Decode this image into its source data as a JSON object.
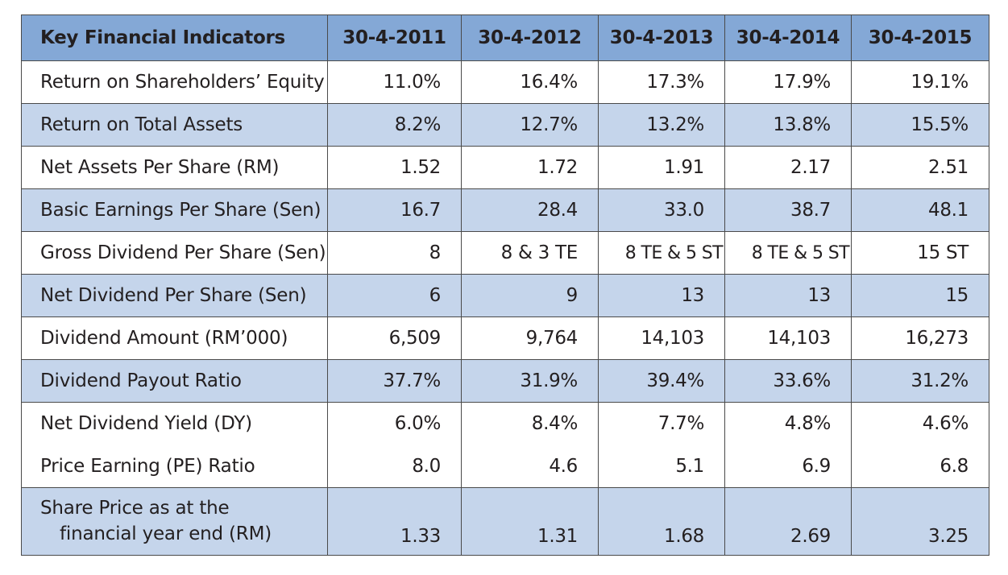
{
  "table": {
    "headers": [
      "Key Financial Indicators",
      "30-4-2011",
      "30-4-2012",
      "30-4-2013",
      "30-4-2014",
      "30-4-2015"
    ],
    "rows": [
      {
        "label": "Return on Shareholders’ Equity",
        "values": [
          "11.0%",
          "16.4%",
          "17.3%",
          "17.9%",
          "19.1%"
        ]
      },
      {
        "label": "Return on Total Assets",
        "values": [
          "8.2%",
          "12.7%",
          "13.2%",
          "13.8%",
          "15.5%"
        ]
      },
      {
        "label": "Net Assets Per Share (RM)",
        "values": [
          "1.52",
          "1.72",
          "1.91",
          "2.17",
          "2.51"
        ]
      },
      {
        "label": "Basic Earnings Per Share (Sen)",
        "values": [
          "16.7",
          "28.4",
          "33.0",
          "38.7",
          "48.1"
        ]
      },
      {
        "label": "Gross Dividend Per Share (Sen)",
        "values": [
          "8",
          "8 & 3 TE",
          "8 TE & 5 ST",
          "8 TE & 5 ST",
          "15 ST"
        ]
      },
      {
        "label": "Net Dividend Per Share (Sen)",
        "values": [
          "6",
          "9",
          "13",
          "13",
          "15"
        ]
      },
      {
        "label": "Dividend Amount (RM’000)",
        "values": [
          "6,509",
          "9,764",
          "14,103",
          "14,103",
          "16,273"
        ]
      },
      {
        "label": "Dividend Payout Ratio",
        "values": [
          "37.7%",
          "31.9%",
          "39.4%",
          "33.6%",
          "31.2%"
        ]
      },
      {
        "label": "Net Dividend Yield (DY)",
        "values": [
          "6.0%",
          "8.4%",
          "7.7%",
          "4.8%",
          "4.6%"
        ]
      },
      {
        "label": "Price Earning (PE) Ratio",
        "values": [
          "8.0",
          "4.6",
          "5.1",
          "6.9",
          "6.8"
        ]
      },
      {
        "label_line1": "Share Price as at the",
        "label_line2": "financial year end (RM)",
        "values": [
          "1.33",
          "1.31",
          "1.68",
          "2.69",
          "3.25"
        ]
      }
    ]
  },
  "colors": {
    "header_background": "#84a8d6",
    "shaded_row_background": "#c5d5eb",
    "plain_row_background": "#ffffff",
    "border": "#4a4a4a",
    "text": "#231f20"
  }
}
